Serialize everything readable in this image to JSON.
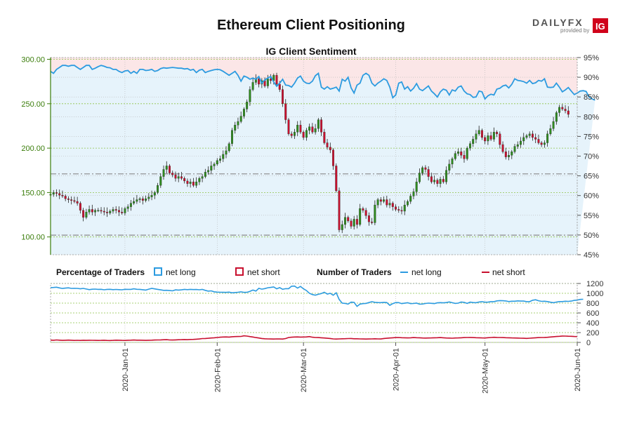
{
  "chart_data": {
    "type": "candlestick",
    "title": "Ethereum Client Positioning",
    "subtitle": "IG Client Sentiment",
    "brand": {
      "name": "DAILYFX",
      "tagline": "provided by",
      "badge": "IG"
    },
    "price_axis": {
      "ticks": [
        "100.00",
        "150.00",
        "200.00",
        "250.00",
        "300.00"
      ],
      "tick_values": [
        100,
        150,
        200,
        250,
        300
      ],
      "range": [
        80,
        302
      ]
    },
    "pct_axis": {
      "ticks": [
        "45%",
        "50%",
        "55%",
        "60%",
        "65%",
        "70%",
        "75%",
        "80%",
        "85%",
        "90%",
        "95%"
      ],
      "tick_values": [
        45,
        50,
        55,
        60,
        65,
        70,
        75,
        80,
        85,
        90,
        95
      ],
      "range": [
        45,
        95
      ]
    },
    "traders_axis": {
      "ticks": [
        "0",
        "200",
        "400",
        "600",
        "800",
        "1000",
        "1200"
      ],
      "tick_values": [
        0,
        200,
        400,
        600,
        800,
        1000,
        1200
      ],
      "range": [
        0,
        1200
      ]
    },
    "date_ticks": [
      "2020-Jan-01",
      "2020-Feb-01",
      "2020-Mar-01",
      "2020-Apr-01",
      "2020-May-01",
      "2020-Jun-01"
    ],
    "date_tick_days": [
      25,
      56,
      85,
      116,
      146,
      177
    ],
    "total_days": 178,
    "reference_lines": [
      {
        "label": "dash-dot",
        "value": 171
      },
      {
        "label": "dash-dot",
        "value": 102
      }
    ],
    "ohlc_close": [
      148,
      150,
      149,
      147,
      146,
      143,
      142,
      141,
      140,
      138,
      130,
      122,
      128,
      131,
      128,
      130,
      130,
      129,
      128,
      127,
      129,
      131,
      130,
      128,
      127,
      132,
      134,
      138,
      140,
      142,
      143,
      141,
      143,
      145,
      147,
      150,
      158,
      168,
      176,
      180,
      172,
      170,
      166,
      168,
      166,
      163,
      160,
      162,
      158,
      162,
      166,
      168,
      173,
      175,
      180,
      182,
      186,
      188,
      193,
      197,
      205,
      220,
      226,
      230,
      236,
      244,
      252,
      266,
      274,
      278,
      272,
      276,
      270,
      278,
      276,
      282,
      272,
      266,
      250,
      232,
      216,
      214,
      218,
      226,
      218,
      212,
      220,
      224,
      218,
      222,
      232,
      218,
      206,
      201,
      198,
      180,
      152,
      108,
      114,
      122,
      118,
      112,
      120,
      114,
      132,
      130,
      124,
      117,
      116,
      136,
      142,
      140,
      142,
      136,
      138,
      134,
      131,
      130,
      129,
      136,
      140,
      146,
      151,
      162,
      172,
      178,
      176,
      168,
      162,
      164,
      160,
      165,
      162,
      175,
      182,
      188,
      194,
      196,
      192,
      188,
      200,
      205,
      210,
      216,
      220,
      212,
      208,
      214,
      210,
      218,
      216,
      204,
      196,
      190,
      192,
      196,
      202,
      204,
      208,
      212,
      214,
      216,
      212,
      210,
      206,
      204,
      206,
      216,
      222,
      230,
      240,
      246,
      244,
      242,
      238
    ],
    "net_long_pct": [
      91.5,
      91,
      92,
      92.5,
      93,
      93,
      92.8,
      93,
      93,
      92.5,
      92,
      92.5,
      93,
      93,
      92,
      92.3,
      92.7,
      93,
      92.8,
      92.5,
      92.4,
      92,
      92,
      91.5,
      91.2,
      91.6,
      91.7,
      91,
      91.5,
      91,
      92,
      92,
      91.7,
      91.8,
      92,
      91.5,
      91.7,
      92.2,
      92.4,
      92.3,
      92.4,
      92.5,
      92.4,
      92.3,
      92.3,
      92.1,
      92.2,
      91.8,
      92,
      91.2,
      91.8,
      92,
      91.2,
      91.5,
      91.7,
      91.9,
      92,
      91.9,
      91.5,
      91,
      90.5,
      91,
      91.5,
      90.5,
      89,
      90.3,
      90,
      89.5,
      89.8,
      89.5,
      90.2,
      88.5,
      89.3,
      89.8,
      90.2,
      88.8,
      87.7,
      88.5,
      89.5,
      88,
      87.9,
      87.5,
      88.5,
      89.8,
      90.3,
      89,
      88.5,
      88.4,
      89,
      90.4,
      91,
      87.5,
      87,
      87.6,
      87,
      87.2,
      87.5,
      86.5,
      89.5,
      89,
      90,
      87.3,
      86,
      88,
      88.5,
      90.5,
      91,
      90.5,
      88.5,
      87.8,
      88.5,
      89,
      89.6,
      89.2,
      87.5,
      84.8,
      85.5,
      88.5,
      88.8,
      87,
      87.6,
      86.5,
      87.2,
      88.4,
      87,
      86.6,
      87.2,
      87.8,
      86.5,
      85.8,
      85,
      86.3,
      87,
      86.7,
      85.5,
      86.8,
      86.5,
      87.5,
      87.8,
      86.5,
      85.8,
      85.6,
      84.9,
      85,
      86.5,
      86.3,
      84.5,
      85.3,
      85.7,
      85.5,
      87,
      87.2,
      87.8,
      88,
      87.3,
      88.2,
      89.6,
      89.2,
      89.1,
      88.9,
      88.5,
      89.2,
      88.4,
      88.6,
      89.2,
      89,
      89.6,
      87.5,
      87.4,
      87.5,
      88.5,
      87.5,
      86.3,
      86.8,
      87.4,
      86.5,
      85.6,
      86,
      86.5,
      86.6,
      86.4,
      85,
      84.5,
      84.2
    ],
    "net_long_traders": [
      1115,
      1118,
      1125,
      1110,
      1098,
      1105,
      1112,
      1100,
      1102,
      1100,
      1092,
      1100,
      1087,
      1074,
      1083,
      1086,
      1080,
      1082,
      1072,
      1080,
      1082,
      1075,
      1078,
      1074,
      1072,
      1082,
      1080,
      1080,
      1092,
      1082,
      1080,
      1073,
      1066,
      1084,
      1100,
      1090,
      1080,
      1070,
      1060,
      1062,
      1055,
      1050,
      1070,
      1065,
      1070,
      1080,
      1075,
      1080,
      1076,
      1077,
      1072,
      1080,
      1060,
      1045,
      1050,
      1030,
      1025,
      1022,
      1020,
      1018,
      1025,
      1010,
      1015,
      1022,
      1030,
      1018,
      1020,
      1040,
      1065,
      1046,
      1102,
      1085,
      1096,
      1113,
      1120,
      1128,
      1092,
      1115,
      1082,
      1095,
      1095,
      1145,
      1147,
      1105,
      1140,
      1092,
      1055,
      1000,
      975,
      962,
      980,
      995,
      1022,
      985,
      1000,
      960,
      1010,
      875,
      800,
      795,
      780,
      820,
      815,
      735,
      780,
      790,
      795,
      812,
      830,
      815,
      812,
      810,
      815,
      812,
      755,
      790,
      812,
      810,
      790,
      798,
      808,
      790,
      793,
      800,
      778,
      782,
      793,
      800,
      796,
      790,
      806,
      810,
      805,
      812,
      825,
      808,
      794,
      800,
      822,
      816,
      794,
      820,
      812,
      808,
      823,
      830,
      818,
      820,
      830,
      830,
      846,
      852,
      848,
      845,
      832,
      838,
      838,
      846,
      842,
      842,
      830,
      830,
      858,
      868,
      848,
      836,
      838,
      832,
      818,
      808,
      822,
      832,
      832,
      838,
      836,
      842,
      855,
      862,
      876,
      878
    ],
    "net_short_traders": [
      47,
      45,
      50,
      46,
      42,
      45,
      47,
      44,
      40,
      43,
      40,
      44,
      42,
      45,
      43,
      42,
      40,
      42,
      44,
      40,
      38,
      42,
      46,
      44,
      42,
      40,
      44,
      46,
      48,
      46,
      46,
      44,
      42,
      45,
      46,
      48,
      50,
      52,
      54,
      55,
      50,
      48,
      52,
      54,
      56,
      58,
      56,
      60,
      62,
      66,
      70,
      78,
      80,
      85,
      90,
      95,
      100,
      105,
      110,
      112,
      108,
      115,
      118,
      120,
      122,
      135,
      128,
      118,
      110,
      98,
      90,
      80,
      75,
      72,
      70,
      68,
      72,
      70,
      68,
      78,
      100,
      105,
      110,
      112,
      108,
      110,
      112,
      118,
      105,
      100,
      98,
      95,
      90,
      85,
      80,
      72,
      68,
      72,
      74,
      76,
      78,
      80,
      75,
      74,
      72,
      70,
      68,
      70,
      72,
      74,
      72,
      70,
      80,
      85,
      90,
      95,
      98,
      100,
      96,
      94,
      92,
      95,
      98,
      96,
      94,
      90,
      88,
      90,
      92,
      94,
      96,
      98,
      94,
      90,
      88,
      86,
      90,
      92,
      94,
      98,
      100,
      102,
      98,
      96,
      94,
      92,
      90,
      96,
      100,
      104,
      102,
      100,
      98,
      96,
      94,
      92,
      90,
      88,
      86,
      84,
      82,
      86,
      90,
      94,
      98,
      100,
      102,
      104,
      110,
      115,
      120,
      125,
      130,
      128,
      126,
      124,
      120,
      118
    ],
    "legend": {
      "pct_heading": "Percentage of Traders",
      "pct_long": "net long",
      "pct_short": "net short",
      "num_heading": "Number of Traders",
      "num_long": "net long",
      "num_short": "net short"
    },
    "colors": {
      "bull": "#2e8b1e",
      "bear": "#c8102e",
      "wick": "#222222",
      "long_line": "#2c9be0",
      "short_line": "#c8102e",
      "long_fill": "#e6f3fb",
      "short_fill": "#fbe6e7",
      "grid": "#8fc34a",
      "price_axis": "#3a7d0a"
    }
  }
}
